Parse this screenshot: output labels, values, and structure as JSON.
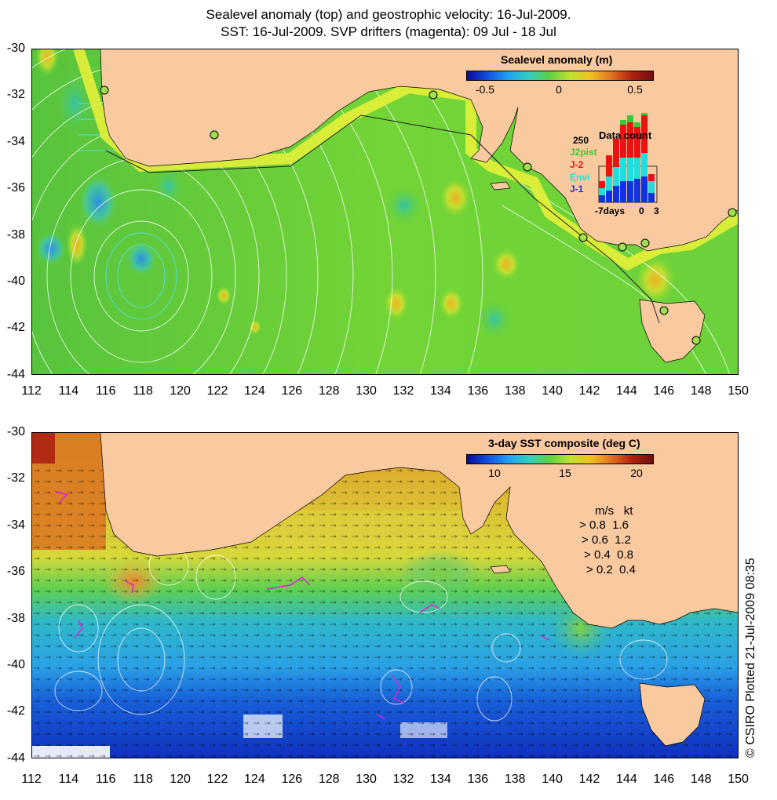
{
  "title": {
    "line1": "Sealevel anomaly (top) and geostrophic velocity: 16-Jul-2009.",
    "line2": "SST: 16-Jul-2009. SVP drifters (magenta): 09 Jul - 18 Jul"
  },
  "axes": {
    "lon_ticks": [
      "112",
      "114",
      "116",
      "118",
      "120",
      "122",
      "124",
      "126",
      "128",
      "130",
      "132",
      "134",
      "136",
      "138",
      "140",
      "142",
      "144",
      "146",
      "148",
      "150"
    ],
    "lat_ticks": [
      "-30",
      "-32",
      "-34",
      "-36",
      "-38",
      "-40",
      "-42",
      "-44"
    ]
  },
  "top_panel": {
    "colorbar_title": "Sealevel anomaly (m)",
    "colorbar_ticks": [
      "-0.5",
      "0",
      "0.5"
    ],
    "data_count_label": "Data count",
    "data_count_max": "250",
    "satellites": [
      {
        "name": "J2pist",
        "color": "#33cc33"
      },
      {
        "name": "J-2",
        "color": "#ee1111"
      },
      {
        "name": "Envi",
        "color": "#22dddd"
      },
      {
        "name": "J-1",
        "color": "#1133dd"
      }
    ],
    "hist_axis_left": "-7days",
    "hist_axis_mid": "0",
    "hist_axis_right": "3"
  },
  "bottom_panel": {
    "colorbar_title": "3-day SST composite (deg C)",
    "colorbar_ticks": [
      "10",
      "15",
      "20"
    ],
    "speed_header_ms": "m/s",
    "speed_header_kt": "kt",
    "speed_rows": [
      {
        "ms": "0.8",
        "kt": "1.6"
      },
      {
        "ms": "0.6",
        "kt": "1.2"
      },
      {
        "ms": "0.4",
        "kt": "0.8"
      },
      {
        "ms": "0.2",
        "kt": "0.4"
      }
    ]
  },
  "copyright": "© CSIRO Plotted 21-Jul-2009 08:35",
  "colors": {
    "land": "#f9c9a0",
    "sla_background": "#6fd63a",
    "sst_warm": "#e39b2a",
    "sst_mid": "#6bd04a",
    "sst_cool": "#2aa7e6",
    "sst_cold": "#1438c8",
    "drifter": "#e020e0"
  }
}
